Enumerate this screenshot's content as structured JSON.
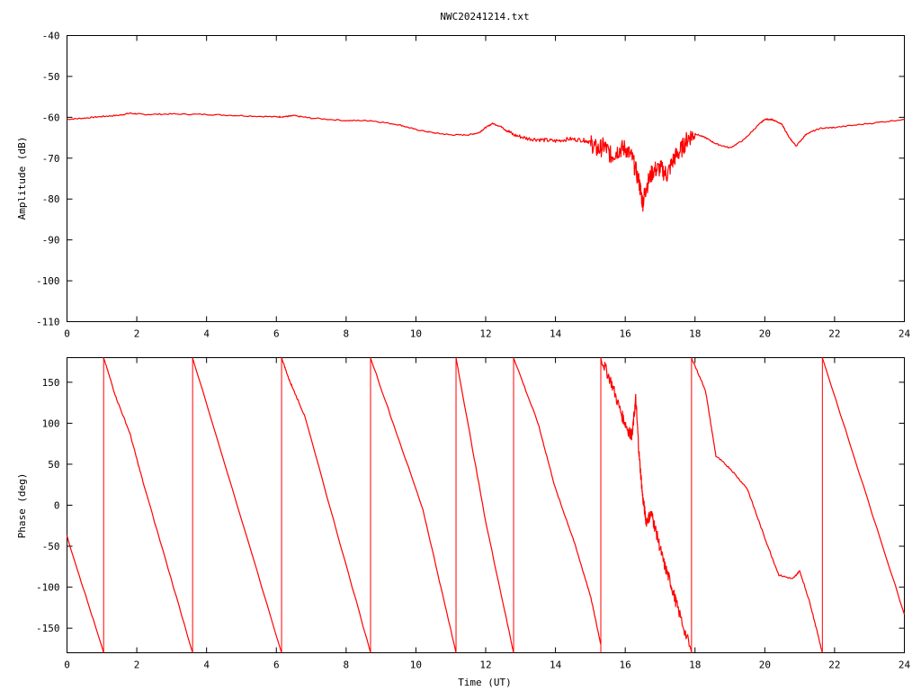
{
  "chart_data": [
    {
      "type": "line",
      "title": "NWC20241214.txt",
      "xlabel": "",
      "ylabel": "Amplitude (dB)",
      "xlim": [
        0,
        24
      ],
      "ylim": [
        -110,
        -40
      ],
      "xticks": [
        "0",
        "2",
        "4",
        "6",
        "8",
        "10",
        "12",
        "14",
        "16",
        "18",
        "20",
        "22",
        "24"
      ],
      "yticks": [
        "-40",
        "-50",
        "-60",
        "-70",
        "-80",
        "-90",
        "-100",
        "-110"
      ],
      "grid": false,
      "series": [
        {
          "color": "#ff0000",
          "x": [
            0,
            0.5,
            1,
            1.5,
            1.8,
            2.2,
            3,
            4,
            5,
            6,
            6.3,
            6.5,
            7,
            8,
            8.7,
            9.5,
            10,
            10.5,
            11,
            11.5,
            11.8,
            12,
            12.2,
            12.5,
            12.8,
            13.2,
            13.6,
            14,
            14.4,
            14.8,
            15,
            15.2,
            15.4,
            15.6,
            15.8,
            16,
            16.2,
            16.4,
            16.5,
            16.6,
            16.8,
            17,
            17.2,
            17.4,
            17.6,
            17.8,
            18,
            18.3,
            18.6,
            19,
            19.4,
            19.8,
            20,
            20.2,
            20.5,
            20.7,
            20.9,
            21.2,
            21.6,
            22,
            23,
            24
          ],
          "y": [
            -60.5,
            -60.2,
            -59.8,
            -59.5,
            -59,
            -59.3,
            -59.2,
            -59.3,
            -59.6,
            -59.9,
            -59.8,
            -59.6,
            -60.2,
            -60.8,
            -60.8,
            -61.8,
            -63,
            -63.8,
            -64.3,
            -64.3,
            -63.8,
            -62.5,
            -61.5,
            -62.5,
            -64.3,
            -65.2,
            -65.5,
            -65.8,
            -65.3,
            -65.6,
            -66,
            -68,
            -67,
            -69.5,
            -68,
            -67.5,
            -70,
            -76,
            -81,
            -77,
            -73,
            -72.5,
            -74,
            -70,
            -68,
            -65,
            -64,
            -65,
            -66.5,
            -67.5,
            -65.5,
            -62,
            -60.5,
            -60.5,
            -61.8,
            -65,
            -67,
            -64,
            -62.7,
            -62.5,
            -61.5,
            -60.5
          ]
        }
      ]
    },
    {
      "type": "line",
      "title": "",
      "xlabel": "Time (UT)",
      "ylabel": "Phase (deg)",
      "xlim": [
        0,
        24
      ],
      "ylim": [
        -180,
        180
      ],
      "xticks": [
        "0",
        "2",
        "4",
        "6",
        "8",
        "10",
        "12",
        "14",
        "16",
        "18",
        "20",
        "22",
        "24"
      ],
      "yticks": [
        "150",
        "100",
        "50",
        "0",
        "-50",
        "-100",
        "-150"
      ],
      "grid": false,
      "series": [
        {
          "color": "#ff0000",
          "segments": [
            {
              "x": [
                0,
                1.05
              ],
              "y": [
                -38,
                -180
              ]
            },
            {
              "x": [
                1.05,
                1.4,
                1.8,
                2.2,
                3.6
              ],
              "y": [
                180,
                132,
                88,
                25,
                -180
              ]
            },
            {
              "x": [
                3.6,
                6.15
              ],
              "y": [
                180,
                -180
              ]
            },
            {
              "x": [
                6.15,
                6.35,
                6.5,
                6.8,
                8.7
              ],
              "y": [
                180,
                155,
                140,
                110,
                -180
              ]
            },
            {
              "x": [
                8.7,
                10.2,
                11.15
              ],
              "y": [
                180,
                -5,
                -180
              ]
            },
            {
              "x": [
                11.15,
                12.0,
                12.8
              ],
              "y": [
                180,
                -20,
                -180
              ]
            },
            {
              "x": [
                12.8,
                13.5,
                14.0,
                14.5,
                15.0,
                15.3
              ],
              "y": [
                180,
                100,
                20,
                -40,
                -110,
                -170
              ]
            },
            {
              "x": [
                15.3,
                15.6,
                15.9,
                16.1,
                16.2,
                16.3,
                16.4,
                16.5,
                16.6,
                16.75,
                16.9,
                17.1,
                17.3,
                17.5,
                17.9
              ],
              "y": [
                180,
                150,
                110,
                90,
                85,
                130,
                60,
                10,
                -20,
                -10,
                -35,
                -70,
                -95,
                -125,
                -180
              ]
            },
            {
              "x": [
                17.9,
                18.3,
                18.6,
                19.0,
                19.5,
                20.0,
                20.4,
                20.8,
                21.0,
                21.3,
                21.65
              ],
              "y": [
                180,
                140,
                60,
                45,
                20,
                -40,
                -85,
                -90,
                -80,
                -120,
                -180
              ]
            },
            {
              "x": [
                21.65,
                24
              ],
              "y": [
                180,
                -133
              ]
            }
          ]
        }
      ]
    }
  ]
}
